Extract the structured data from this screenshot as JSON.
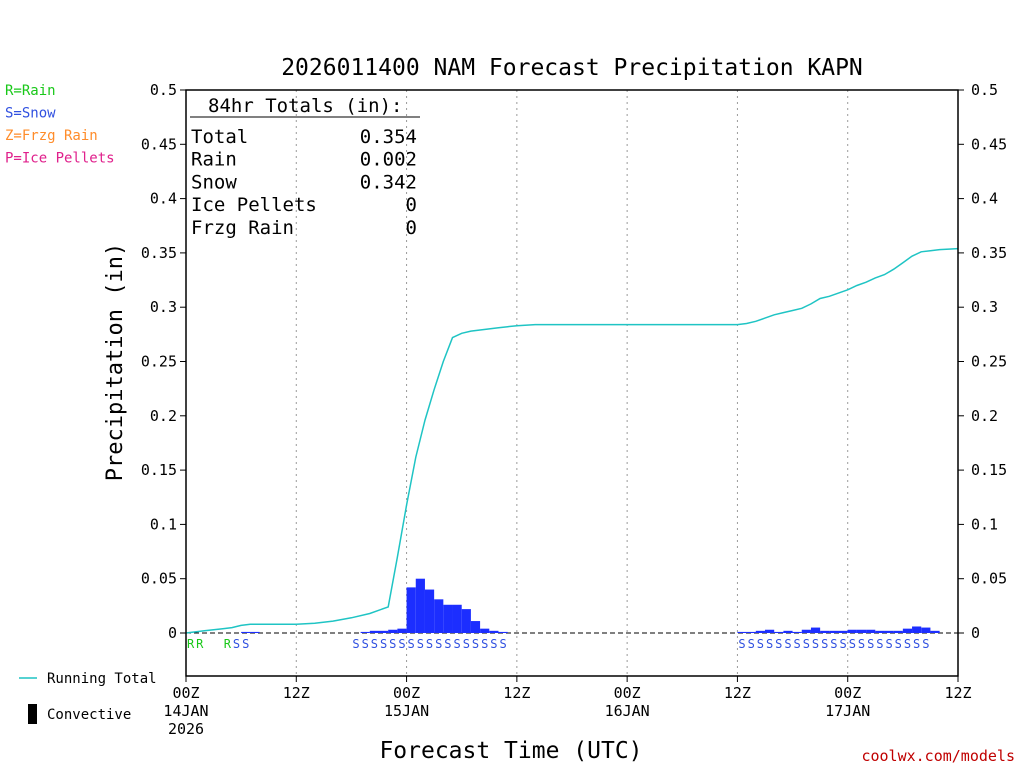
{
  "chart_data": {
    "type": "bar",
    "title": "2026011400 NAM Forecast Precipitation KAPN",
    "xlabel": "Forecast Time (UTC)",
    "ylabel": "Precipitation (in)",
    "ylim": [
      0,
      0.5
    ],
    "yticks": [
      {
        "value": 0,
        "label": "0"
      },
      {
        "value": 0.05,
        "label": "0.05"
      },
      {
        "value": 0.1,
        "label": "0.1"
      },
      {
        "value": 0.15,
        "label": "0.15"
      },
      {
        "value": 0.2,
        "label": "0.2"
      },
      {
        "value": 0.25,
        "label": "0.25"
      },
      {
        "value": 0.3,
        "label": "0.3"
      },
      {
        "value": 0.35,
        "label": "0.35"
      },
      {
        "value": 0.4,
        "label": "0.4"
      },
      {
        "value": 0.45,
        "label": "0.45"
      },
      {
        "value": 0.5,
        "label": "0.5"
      }
    ],
    "xrange_hours": [
      0,
      84
    ],
    "xticks": [
      {
        "hour": 0,
        "lines": [
          "00Z",
          "14JAN",
          "2026"
        ]
      },
      {
        "hour": 12,
        "lines": [
          "12Z"
        ]
      },
      {
        "hour": 24,
        "lines": [
          "00Z",
          "15JAN"
        ]
      },
      {
        "hour": 36,
        "lines": [
          "12Z"
        ]
      },
      {
        "hour": 48,
        "lines": [
          "00Z",
          "16JAN"
        ]
      },
      {
        "hour": 60,
        "lines": [
          "12Z"
        ]
      },
      {
        "hour": 72,
        "lines": [
          "00Z",
          "17JAN"
        ]
      },
      {
        "hour": 84,
        "lines": [
          "12Z"
        ]
      }
    ],
    "grid_hours": [
      12,
      24,
      36,
      48,
      60,
      72
    ],
    "series": [
      {
        "name": "Convective",
        "kind": "bars",
        "color": "#1c2eff",
        "start_hours": [
          6,
          7,
          19,
          20,
          21,
          22,
          23,
          24,
          25,
          26,
          27,
          28,
          29,
          30,
          31,
          32,
          33,
          34,
          60,
          61,
          62,
          63,
          64,
          65,
          66,
          67,
          68,
          69,
          70,
          71,
          72,
          73,
          74,
          75,
          76,
          77,
          78,
          79,
          80,
          81
        ],
        "values": [
          0.001,
          0.001,
          0.001,
          0.002,
          0.002,
          0.003,
          0.004,
          0.042,
          0.05,
          0.04,
          0.031,
          0.026,
          0.026,
          0.022,
          0.011,
          0.004,
          0.002,
          0.001,
          0.001,
          0.001,
          0.002,
          0.003,
          0.001,
          0.002,
          0.001,
          0.003,
          0.005,
          0.002,
          0.002,
          0.002,
          0.003,
          0.003,
          0.003,
          0.002,
          0.002,
          0.002,
          0.004,
          0.006,
          0.005,
          0.002
        ]
      },
      {
        "name": "Running Total",
        "kind": "line",
        "color": "#1fc4c4",
        "x_hours": [
          0,
          1,
          2,
          3,
          4,
          5,
          6,
          7,
          8,
          10,
          12,
          14,
          16,
          18,
          20,
          22,
          23,
          24,
          25,
          26,
          27,
          28,
          29,
          30,
          31,
          32,
          33,
          34,
          35,
          36,
          38,
          40,
          44,
          48,
          52,
          56,
          60,
          61,
          62,
          63,
          64,
          65,
          66,
          67,
          68,
          69,
          70,
          71,
          72,
          73,
          74,
          75,
          76,
          77,
          78,
          79,
          80,
          81,
          82,
          84
        ],
        "values": [
          0.0,
          0.001,
          0.002,
          0.003,
          0.004,
          0.005,
          0.007,
          0.008,
          0.008,
          0.008,
          0.008,
          0.009,
          0.011,
          0.014,
          0.018,
          0.024,
          0.07,
          0.118,
          0.162,
          0.196,
          0.224,
          0.25,
          0.272,
          0.276,
          0.278,
          0.279,
          0.28,
          0.281,
          0.282,
          0.283,
          0.284,
          0.284,
          0.284,
          0.284,
          0.284,
          0.284,
          0.284,
          0.285,
          0.287,
          0.29,
          0.293,
          0.295,
          0.297,
          0.299,
          0.303,
          0.308,
          0.31,
          0.313,
          0.316,
          0.32,
          0.323,
          0.327,
          0.33,
          0.335,
          0.341,
          0.347,
          0.351,
          0.352,
          0.353,
          0.354
        ]
      }
    ],
    "ptype_markers": [
      {
        "hours": [
          0,
          1
        ],
        "letter": "R",
        "color": "#19c819"
      },
      {
        "hours": [
          4
        ],
        "letter": "R",
        "color": "#19c819"
      },
      {
        "hours": [
          5,
          6
        ],
        "letter": "S",
        "color": "#3050e0"
      },
      {
        "hours": [
          18,
          19,
          20,
          21,
          22,
          23,
          24,
          25,
          26,
          27,
          28,
          29,
          30,
          31,
          32,
          33,
          34
        ],
        "letter": "S",
        "color": "#3050e0"
      },
      {
        "hours": [
          60,
          61,
          62,
          63,
          64,
          65,
          66,
          67,
          68,
          69,
          70,
          71,
          72,
          73,
          74,
          75,
          76,
          77,
          78,
          79,
          80
        ],
        "letter": "S",
        "color": "#3050e0"
      }
    ],
    "ptype_legend": [
      {
        "text": "R=Rain",
        "color": "#19c819"
      },
      {
        "text": "S=Snow",
        "color": "#3050e0"
      },
      {
        "text": "Z=Frzg Rain",
        "color": "#ff8c2a"
      },
      {
        "text": "P=Ice Pellets",
        "color": "#e0208c"
      }
    ],
    "totals": {
      "header": "84hr Totals (in):",
      "rows": [
        {
          "label": "Total",
          "value": "0.354"
        },
        {
          "label": "Rain",
          "value": "0.002"
        },
        {
          "label": "Snow",
          "value": "0.342"
        },
        {
          "label": "Ice Pellets",
          "value": "0"
        },
        {
          "label": "Frzg Rain",
          "value": "0"
        }
      ]
    },
    "series_legend": [
      {
        "text": "Running Total",
        "swatch": "line",
        "color": "#1fc4c4"
      },
      {
        "text": "Convective",
        "swatch": "bar",
        "color": "#000000"
      }
    ]
  },
  "credit": "coolwx.com/models"
}
